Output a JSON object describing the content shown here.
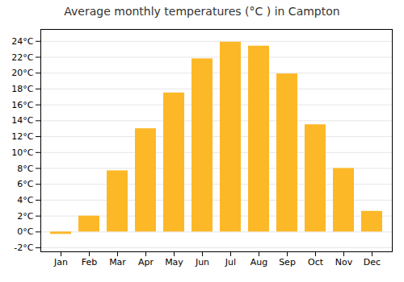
{
  "chart_data": {
    "type": "bar",
    "title": "Average monthly temperatures (°C ) in Campton",
    "categories": [
      "Jan",
      "Feb",
      "Mar",
      "Apr",
      "May",
      "Jun",
      "Jul",
      "Aug",
      "Sep",
      "Oct",
      "Nov",
      "Dec"
    ],
    "values": [
      -0.3,
      2.0,
      7.7,
      13.0,
      17.5,
      21.8,
      23.9,
      23.4,
      19.9,
      13.5,
      8.0,
      2.6
    ],
    "color": "#FDB827",
    "ylim": [
      -2.5,
      25.5
    ],
    "yticks": [
      {
        "value": -2,
        "label": "-2°C"
      },
      {
        "value": 0,
        "label": "0°C"
      },
      {
        "value": 2,
        "label": "2°C"
      },
      {
        "value": 4,
        "label": "4°C"
      },
      {
        "value": 6,
        "label": "6°C"
      },
      {
        "value": 8,
        "label": "8°C"
      },
      {
        "value": 10,
        "label": "10°C"
      },
      {
        "value": 12,
        "label": "12°C"
      },
      {
        "value": 14,
        "label": "14°C"
      },
      {
        "value": 16,
        "label": "16°C"
      },
      {
        "value": 18,
        "label": "18°C"
      },
      {
        "value": 20,
        "label": "20°C"
      },
      {
        "value": 22,
        "label": "22°C"
      },
      {
        "value": 24,
        "label": "24°C"
      }
    ],
    "grid": true
  }
}
